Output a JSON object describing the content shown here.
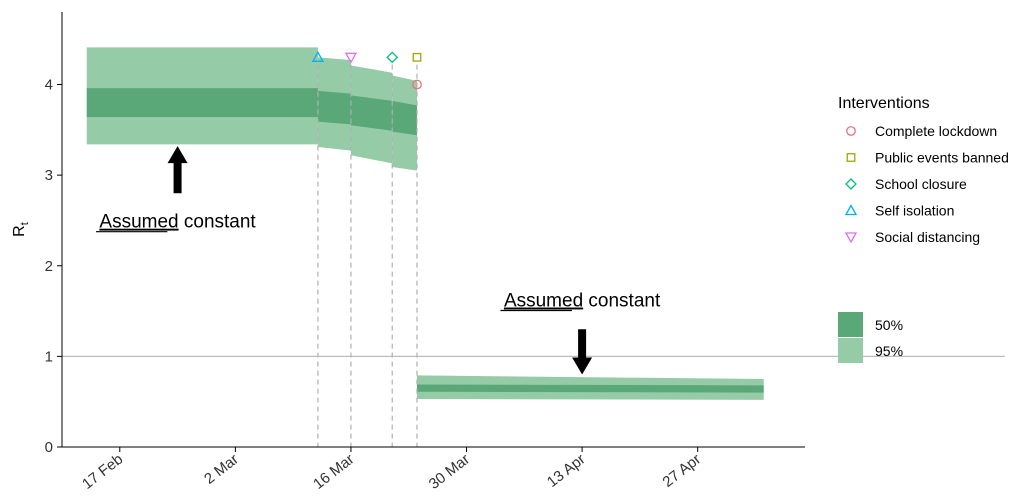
{
  "chart_data": {
    "type": "area",
    "title": "",
    "xlabel": "",
    "ylabel": "R",
    "ylabel_subscript": "t",
    "ylim": [
      0,
      4.8
    ],
    "yticks": [
      0,
      1,
      2,
      3,
      4
    ],
    "xlim": [
      "2020-02-10",
      "2020-05-10"
    ],
    "xticks": [
      {
        "date": "2020-02-17",
        "label": "17 Feb"
      },
      {
        "date": "2020-03-02",
        "label": "2 Mar"
      },
      {
        "date": "2020-03-16",
        "label": "16 Mar"
      },
      {
        "date": "2020-03-30",
        "label": "30 Mar"
      },
      {
        "date": "2020-04-13",
        "label": "13 Apr"
      },
      {
        "date": "2020-04-27",
        "label": "27 Apr"
      }
    ],
    "grid": false,
    "reference_line": 1,
    "series": [
      {
        "name": "50%",
        "color": "#5aa878",
        "segments": [
          {
            "x_start": "2020-02-13",
            "x_end": "2020-03-12",
            "lo": [
              3.64,
              3.64
            ],
            "hi": [
              3.96,
              3.96
            ]
          },
          {
            "x_start": "2020-03-12",
            "x_end": "2020-03-16",
            "lo": [
              3.59,
              3.56
            ],
            "hi": [
              3.93,
              3.9
            ]
          },
          {
            "x_start": "2020-03-16",
            "x_end": "2020-03-21",
            "lo": [
              3.55,
              3.49
            ],
            "hi": [
              3.88,
              3.82
            ]
          },
          {
            "x_start": "2020-03-21",
            "x_end": "2020-03-24",
            "lo": [
              3.48,
              3.44
            ],
            "hi": [
              3.82,
              3.77
            ]
          },
          {
            "x_start": "2020-03-24",
            "x_end": "2020-05-05",
            "lo": [
              0.61,
              0.6
            ],
            "hi": [
              0.69,
              0.68
            ]
          }
        ]
      },
      {
        "name": "95%",
        "color": "#96cba7",
        "segments": [
          {
            "x_start": "2020-02-13",
            "x_end": "2020-03-12",
            "lo": [
              3.34,
              3.34
            ],
            "hi": [
              4.41,
              4.41
            ]
          },
          {
            "x_start": "2020-03-12",
            "x_end": "2020-03-16",
            "lo": [
              3.31,
              3.27
            ],
            "hi": [
              4.3,
              4.27
            ]
          },
          {
            "x_start": "2020-03-16",
            "x_end": "2020-03-21",
            "lo": [
              3.22,
              3.13
            ],
            "hi": [
              4.21,
              4.13
            ]
          },
          {
            "x_start": "2020-03-21",
            "x_end": "2020-03-24",
            "lo": [
              3.09,
              3.05
            ],
            "hi": [
              4.1,
              4.04
            ]
          },
          {
            "x_start": "2020-03-24",
            "x_end": "2020-05-05",
            "lo": [
              0.53,
              0.52
            ],
            "hi": [
              0.79,
              0.75
            ]
          }
        ]
      }
    ],
    "interventions": [
      {
        "name": "Complete lockdown",
        "date": "2020-03-24",
        "symbol": "circle",
        "color": "#e8747c",
        "y": 4.0
      },
      {
        "name": "Public events banned",
        "date": "2020-03-24",
        "symbol": "square",
        "color": "#a3a500",
        "y": 4.3
      },
      {
        "name": "School closure",
        "date": "2020-03-21",
        "symbol": "diamond",
        "color": "#00bf7d",
        "y": 4.3
      },
      {
        "name": "Self isolation",
        "date": "2020-03-12",
        "symbol": "triangle-up",
        "color": "#00b0f6",
        "y": 4.3
      },
      {
        "name": "Social distancing",
        "date": "2020-03-16",
        "symbol": "triangle-down",
        "color": "#e76bf3",
        "y": 4.3
      }
    ],
    "legend": {
      "title": "Interventions",
      "placement": "right",
      "bands_title": ""
    },
    "annotations": [
      {
        "underlined": "Assumed",
        "rest": " constant",
        "arrow": "up",
        "date": "2020-02-24",
        "arrow_y_tip": 3.32,
        "arrow_y_tail": 2.8,
        "text_y": 2.42
      },
      {
        "underlined": "Assumed",
        "rest": " constant",
        "arrow": "down",
        "date": "2020-04-13",
        "arrow_y_tip": 0.8,
        "arrow_y_tail": 1.3,
        "text_y": 1.55
      }
    ]
  }
}
